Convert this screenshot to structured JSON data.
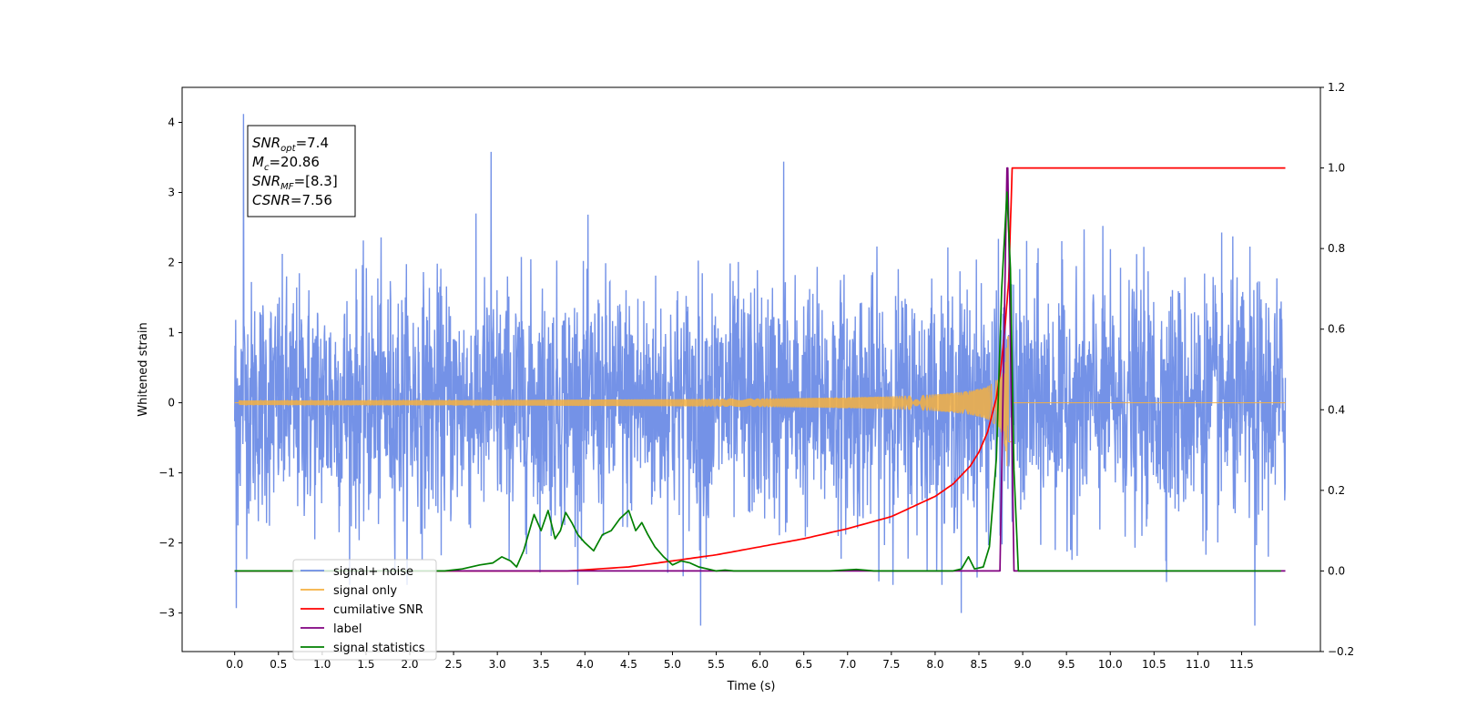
{
  "chart_data": {
    "type": "line",
    "xlabel": "Time (s)",
    "ylabel": "Whitened strain",
    "xlim": [
      -0.6,
      12.4
    ],
    "ylim": [
      -3.55,
      4.5
    ],
    "ylim_right": [
      -0.2,
      1.2
    ],
    "x_ticks": [
      0.0,
      0.5,
      1.0,
      1.5,
      2.0,
      2.5,
      3.0,
      3.5,
      4.0,
      4.5,
      5.0,
      5.5,
      6.0,
      6.5,
      7.0,
      7.5,
      8.0,
      8.5,
      9.0,
      9.5,
      10.0,
      10.5,
      11.0,
      11.5
    ],
    "x_tick_labels": [
      "0.0",
      "0.5",
      "1.0",
      "1.5",
      "2.0",
      "2.5",
      "3.0",
      "3.5",
      "4.0",
      "4.5",
      "5.0",
      "5.5",
      "6.0",
      "6.5",
      "7.0",
      "7.5",
      "8.0",
      "8.5",
      "9.0",
      "9.5",
      "10.0",
      "10.5",
      "11.0",
      "11.5"
    ],
    "y_ticks": [
      -3,
      -2,
      -1,
      0,
      1,
      2,
      3,
      4
    ],
    "y_tick_labels": [
      "−3",
      "−2",
      "−1",
      "0",
      "1",
      "2",
      "3",
      "4"
    ],
    "y_right_ticks": [
      -0.2,
      0.0,
      0.2,
      0.4,
      0.6,
      0.8,
      1.0,
      1.2
    ],
    "y_right_tick_labels": [
      "−0.2",
      "0.0",
      "0.2",
      "0.4",
      "0.6",
      "0.8",
      "1.0",
      "1.2"
    ],
    "grid": false,
    "legend_position": "lower-left",
    "annotation": {
      "lines": [
        {
          "base": "SNR",
          "sub": "opt",
          "rest": "=7.4"
        },
        {
          "base": "M",
          "sub": "c",
          "rest": "=20.86"
        },
        {
          "base": "SNR",
          "sub": "MF",
          "rest": "=[8.3]"
        },
        {
          "base": "CSNR",
          "sub": "",
          "rest": "=7.56"
        }
      ]
    },
    "series": [
      {
        "name": "signal+ noise",
        "color": "#6d8ce6",
        "axis": "left",
        "x_range": [
          0.0,
          12.0
        ],
        "noise_amplitude_typical": 1.5,
        "extremes": [
          [
            0.1,
            4.12
          ],
          [
            2.93,
            3.58
          ],
          [
            6.27,
            3.44
          ],
          [
            8.3,
            -3.0
          ],
          [
            5.32,
            -3.18
          ],
          [
            11.65,
            -3.18
          ],
          [
            0.02,
            -2.93
          ]
        ]
      },
      {
        "name": "signal only",
        "color": "#f5b041",
        "axis": "left",
        "x_range": [
          0.0,
          12.0
        ],
        "chirp_peak_time": 8.82,
        "chirp_peak_amplitude": 0.95
      },
      {
        "name": "cumilative SNR",
        "color": "#ff0000",
        "axis": "right",
        "x": [
          0.0,
          3.8,
          4.5,
          5.0,
          5.5,
          6.0,
          6.5,
          7.0,
          7.5,
          8.0,
          8.2,
          8.4,
          8.5,
          8.6,
          8.7,
          8.75,
          8.8,
          8.84,
          8.88,
          12.0
        ],
        "y": [
          0.0,
          0.0,
          0.01,
          0.025,
          0.04,
          0.06,
          0.08,
          0.105,
          0.135,
          0.185,
          0.215,
          0.26,
          0.295,
          0.345,
          0.43,
          0.5,
          0.61,
          0.72,
          1.0,
          1.0
        ]
      },
      {
        "name": "label",
        "color": "#800080",
        "axis": "right",
        "x": [
          0.0,
          8.74,
          8.82,
          8.83,
          8.9,
          12.0
        ],
        "y": [
          0.0,
          0.0,
          1.0,
          1.0,
          0.0,
          0.0
        ]
      },
      {
        "name": "signal statistics",
        "color": "#008000",
        "axis": "right",
        "x": [
          0.0,
          2.4,
          2.6,
          2.8,
          2.95,
          3.05,
          3.15,
          3.22,
          3.3,
          3.42,
          3.5,
          3.58,
          3.66,
          3.72,
          3.78,
          3.85,
          3.92,
          4.0,
          4.1,
          4.2,
          4.3,
          4.4,
          4.5,
          4.58,
          4.65,
          4.72,
          4.8,
          4.9,
          5.0,
          5.1,
          5.2,
          5.3,
          5.4,
          5.5,
          5.6,
          5.7,
          6.0,
          6.8,
          7.1,
          7.3,
          8.2,
          8.3,
          8.38,
          8.45,
          8.55,
          8.62,
          8.7,
          8.76,
          8.82,
          8.86,
          8.9,
          8.95,
          9.05,
          11.95
        ],
        "y": [
          0.0,
          0.0,
          0.005,
          0.015,
          0.02,
          0.035,
          0.025,
          0.01,
          0.05,
          0.14,
          0.1,
          0.15,
          0.08,
          0.1,
          0.145,
          0.12,
          0.09,
          0.07,
          0.05,
          0.09,
          0.1,
          0.13,
          0.15,
          0.1,
          0.12,
          0.09,
          0.06,
          0.035,
          0.015,
          0.025,
          0.02,
          0.01,
          0.005,
          0.0,
          0.002,
          0.0,
          0.0,
          0.0,
          0.004,
          0.0,
          0.0,
          0.005,
          0.035,
          0.005,
          0.01,
          0.06,
          0.28,
          0.7,
          0.94,
          0.75,
          0.25,
          0.0,
          0.0,
          0.0
        ]
      }
    ]
  }
}
